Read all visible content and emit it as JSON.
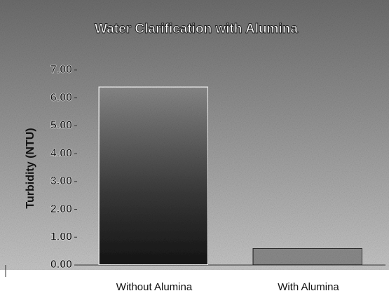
{
  "chart_data": {
    "type": "bar",
    "title": "Water Clarification with Alumina",
    "y_label": "Turbidity (NTU)",
    "categories": [
      "Without Alumina",
      "With Alumina"
    ],
    "values": [
      6.4,
      0.6
    ],
    "ylim": [
      0,
      7.5
    ],
    "yticks": [
      {
        "value": 0,
        "label": "0.00"
      },
      {
        "value": 1,
        "label": "1.00"
      },
      {
        "value": 2,
        "label": "2.00"
      },
      {
        "value": 3,
        "label": "3.00"
      },
      {
        "value": 4,
        "label": "4.00"
      },
      {
        "value": 5,
        "label": "5.00"
      },
      {
        "value": 6,
        "label": "6.00"
      },
      {
        "value": 7,
        "label": "7.00"
      }
    ],
    "grid": false
  }
}
